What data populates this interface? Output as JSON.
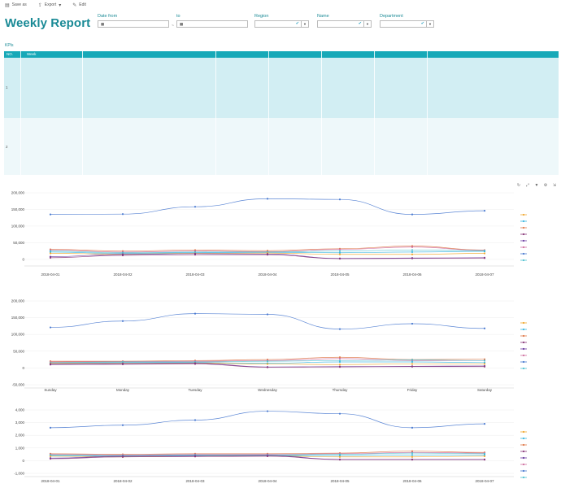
{
  "toolbar": {
    "items": [
      {
        "label": "Save as",
        "icon": "save-icon"
      },
      {
        "label": "Export",
        "icon": "export-icon"
      },
      {
        "label": "Edit",
        "icon": "edit-icon"
      }
    ]
  },
  "header": {
    "title": "Weekly Report"
  },
  "filters": {
    "date_from_label": "Date from",
    "date_from_value": "",
    "date_to_label": "to",
    "date_to_value": "",
    "range_sep": "~",
    "region_label": "Region",
    "name_label": "Name",
    "department_label": "Department"
  },
  "kpis": {
    "label": "KPIs",
    "columns": [
      "NO.",
      "Week",
      "",
      "",
      "",
      "",
      "",
      ""
    ],
    "rows": [
      "1",
      "2"
    ]
  },
  "colors": {
    "header_teal": "#17a9b8",
    "title_teal": "#1a8a96",
    "series": [
      "#f0a830",
      "#3ab6e0",
      "#e07a4a",
      "#8a3a7a",
      "#6a3aa0",
      "#d070a0",
      "#4a7ad0",
      "#50c0d0"
    ]
  },
  "chart_data": [
    {
      "type": "line",
      "categories": [
        "2018-04-01",
        "2018-04-02",
        "2018-04-03",
        "2018-04-04",
        "2018-04-05",
        "2018-04-06",
        "2018-04-07"
      ],
      "y_ticks": [
        "200,000",
        "150,000",
        "100,000",
        "50,000",
        "0"
      ],
      "ylim": [
        -10000,
        200000
      ],
      "legend_position": "right",
      "series": [
        {
          "values": [
            135000,
            136000,
            158000,
            182000,
            180000,
            135000,
            146000
          ],
          "color": "#4a7ad0"
        },
        {
          "values": [
            30000,
            25000,
            28000,
            26000,
            32000,
            40000,
            28000
          ],
          "color": "#e07a4a"
        },
        {
          "values": [
            28000,
            22000,
            25000,
            23000,
            30000,
            37000,
            27000
          ],
          "color": "#d070a0"
        },
        {
          "values": [
            25000,
            20000,
            22000,
            22000,
            25000,
            28000,
            26000
          ],
          "color": "#50c0d0"
        },
        {
          "values": [
            22000,
            18000,
            20000,
            21000,
            20000,
            22000,
            24000
          ],
          "color": "#3ab6e0"
        },
        {
          "values": [
            18000,
            16000,
            18000,
            19000,
            15000,
            15000,
            18000
          ],
          "color": "#f0a830"
        },
        {
          "values": [
            8000,
            15000,
            17000,
            16000,
            3000,
            4000,
            5000
          ],
          "color": "#6a3aa0"
        },
        {
          "values": [
            5000,
            12000,
            14000,
            14000,
            2000,
            3000,
            4000
          ],
          "color": "#8a3a7a"
        }
      ]
    },
    {
      "type": "line",
      "categories": [
        "Sunday",
        "Monday",
        "Tuesday",
        "Wednesday",
        "Thursday",
        "Friday",
        "Saturday"
      ],
      "y_ticks": [
        "200,000",
        "150,000",
        "100,000",
        "50,000",
        "0",
        "-50,000"
      ],
      "ylim": [
        -50000,
        200000
      ],
      "legend_position": "right",
      "series": [
        {
          "values": [
            121000,
            140000,
            162000,
            160000,
            116000,
            132000,
            118000
          ],
          "color": "#4a7ad0"
        },
        {
          "values": [
            20000,
            20000,
            22000,
            25000,
            32000,
            25000,
            26000
          ],
          "color": "#e07a4a"
        },
        {
          "values": [
            18000,
            19000,
            20000,
            22000,
            28000,
            22000,
            22000
          ],
          "color": "#d070a0"
        },
        {
          "values": [
            16000,
            18000,
            18000,
            20000,
            22000,
            24000,
            22000
          ],
          "color": "#50c0d0"
        },
        {
          "values": [
            15000,
            16000,
            16000,
            14000,
            18000,
            18000,
            16000
          ],
          "color": "#3ab6e0"
        },
        {
          "values": [
            14000,
            14000,
            15000,
            12000,
            10000,
            12000,
            12000
          ],
          "color": "#f0a830"
        },
        {
          "values": [
            12000,
            13000,
            14000,
            3000,
            4000,
            5000,
            6000
          ],
          "color": "#6a3aa0"
        },
        {
          "values": [
            10000,
            11000,
            12000,
            2000,
            3000,
            4000,
            4000
          ],
          "color": "#8a3a7a"
        }
      ]
    },
    {
      "type": "line",
      "categories": [
        "2018-04-01",
        "2018-04-02",
        "2018-04-03",
        "2018-04-04",
        "2018-04-05",
        "2018-04-06",
        "2018-04-07"
      ],
      "y_ticks": [
        "4,000",
        "3,000",
        "2,000",
        "1,000",
        "0",
        "-1,000"
      ],
      "ylim": [
        -1000,
        4000
      ],
      "legend_position": "right",
      "series": [
        {
          "values": [
            2600,
            2800,
            3200,
            3900,
            3700,
            2600,
            2900
          ],
          "color": "#4a7ad0"
        },
        {
          "values": [
            550,
            500,
            550,
            550,
            600,
            750,
            650
          ],
          "color": "#e07a4a"
        },
        {
          "values": [
            500,
            450,
            500,
            500,
            550,
            650,
            600
          ],
          "color": "#d070a0"
        },
        {
          "values": [
            450,
            400,
            450,
            450,
            500,
            600,
            550
          ],
          "color": "#50c0d0"
        },
        {
          "values": [
            400,
            350,
            400,
            400,
            400,
            450,
            450
          ],
          "color": "#3ab6e0"
        },
        {
          "values": [
            350,
            300,
            350,
            380,
            300,
            300,
            350
          ],
          "color": "#f0a830"
        },
        {
          "values": [
            200,
            350,
            380,
            400,
            100,
            100,
            100
          ],
          "color": "#6a3aa0"
        },
        {
          "values": [
            150,
            300,
            330,
            350,
            80,
            80,
            80
          ],
          "color": "#8a3a7a"
        }
      ]
    }
  ]
}
